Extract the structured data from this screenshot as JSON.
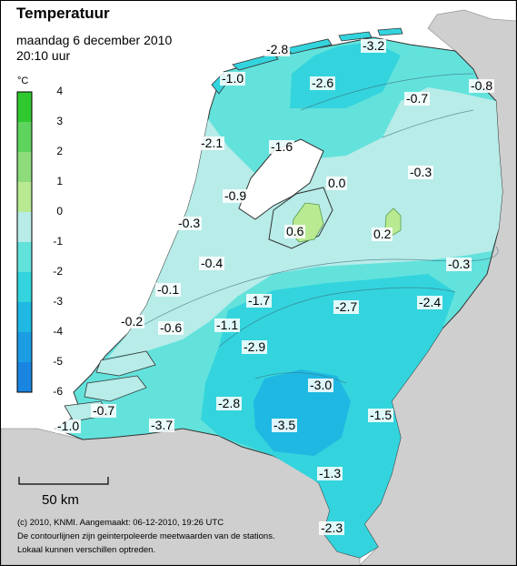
{
  "title": "Temperatuur",
  "date_line": "maandag 6 december 2010",
  "time_line": "20:10 uur",
  "legend": {
    "unit": "°C",
    "ticks": [
      "4",
      "3",
      "2",
      "1",
      "0",
      "-1",
      "-2",
      "-3",
      "-4",
      "-5",
      "-6"
    ],
    "bands": [
      {
        "from": 3,
        "to": 4,
        "color": "#2fc92f"
      },
      {
        "from": 2,
        "to": 3,
        "color": "#5ed35e"
      },
      {
        "from": 1,
        "to": 2,
        "color": "#8ddb7a"
      },
      {
        "from": 0,
        "to": 1,
        "color": "#b9ea92"
      },
      {
        "from": -1,
        "to": 0,
        "color": "#b7ece8"
      },
      {
        "from": -2,
        "to": -1,
        "color": "#63e2dc"
      },
      {
        "from": -3,
        "to": -2,
        "color": "#33d4dd"
      },
      {
        "from": -4,
        "to": -3,
        "color": "#1fb8e2"
      },
      {
        "from": -5,
        "to": -4,
        "color": "#1b9de4"
      },
      {
        "from": -6,
        "to": -5,
        "color": "#1a85e0"
      }
    ]
  },
  "station_values": [
    "-2.8",
    "-3.2",
    "-1.0",
    "-2.6",
    "-0.7",
    "-0.8",
    "-2.1",
    "-1.6",
    "-0.3",
    "0.0",
    "-0.9",
    "-0.3",
    "0.6",
    "0.2",
    "-0.4",
    "-0.3",
    "-0.1",
    "-1.7",
    "-2.7",
    "-2.4",
    "-0.2",
    "-0.6",
    "-1.1",
    "-2.9",
    "-3.0",
    "-2.8",
    "-1.5",
    "-0.7",
    "-3.5",
    "-1.0",
    "-3.7",
    "-1.3",
    "-2.3"
  ],
  "scale_bar_label": "50 km",
  "credits": [
    "(c) 2010, KNMI. Aangemaakt: 06-12-2010, 19:26 UTC",
    "De contourlijnen zijn geinterpoleerde meetwaarden van de stations.",
    "Lokaal kunnen verschillen optreden."
  ],
  "colors": {
    "land": "#cfcfcf",
    "sea": "#ffffff",
    "lake": "#ffffff"
  }
}
